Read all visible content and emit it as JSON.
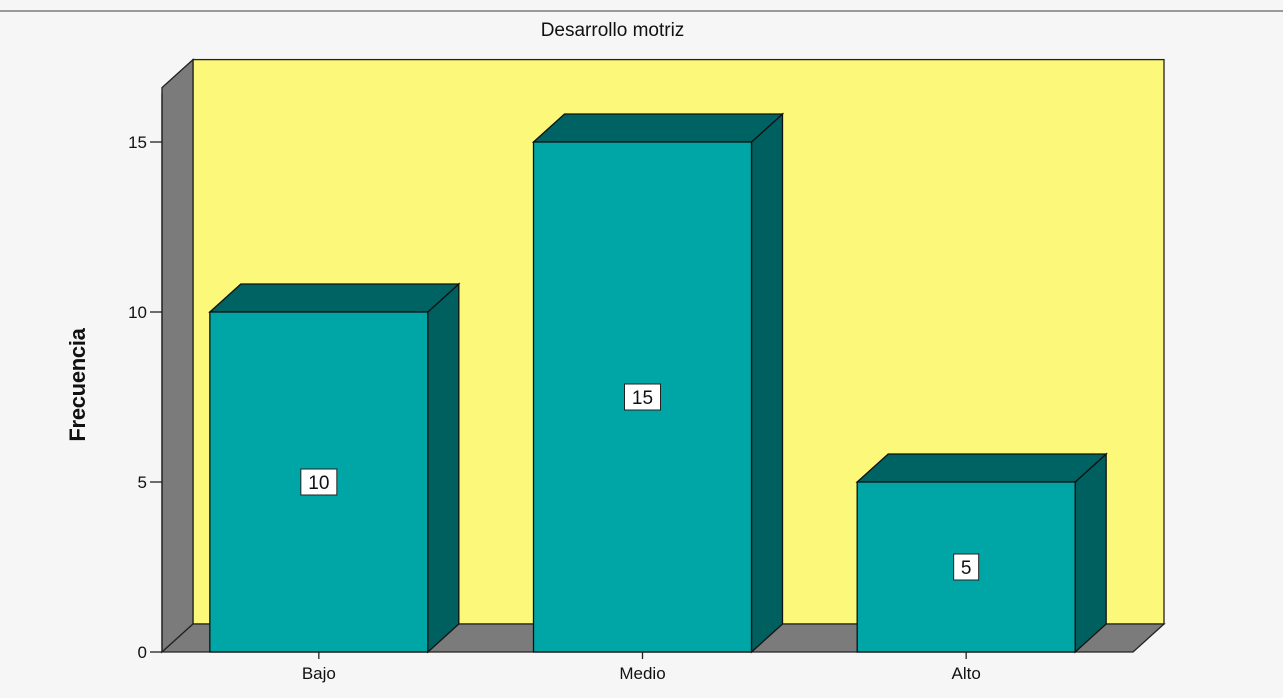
{
  "chart_data": {
    "type": "bar",
    "title": "Desarrollo motriz",
    "xlabel": "",
    "ylabel": "Frecuencia",
    "categories": [
      "Bajo",
      "Medio",
      "Alto"
    ],
    "values": [
      10,
      15,
      5
    ],
    "data_labels": [
      "10",
      "15",
      "5"
    ],
    "ylim": [
      0,
      16.6
    ],
    "yticks": [
      0,
      5,
      10,
      15
    ],
    "ytick_labels": [
      "0",
      "5",
      "10",
      "15"
    ],
    "grid": false,
    "style": "3d",
    "colors": {
      "bar_front": "#00a5a5",
      "bar_top": "#006363",
      "bar_side": "#005f5f",
      "wall": "#fbf87a",
      "wall_side": "#7b7b7b",
      "floor": "#7b7b7b"
    }
  }
}
